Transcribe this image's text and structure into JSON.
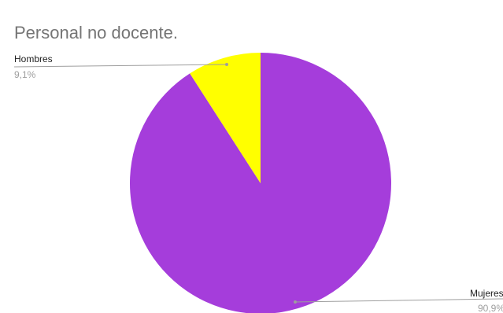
{
  "chart_data": {
    "type": "pie",
    "title": "Personal no docente.",
    "slices": [
      {
        "label": "Mujeres",
        "value": 90.9,
        "percent_label": "90,9%",
        "color": "#a53ddb"
      },
      {
        "label": "Hombres",
        "value": 9.1,
        "percent_label": "9,1%",
        "color": "#ffff00"
      }
    ]
  }
}
